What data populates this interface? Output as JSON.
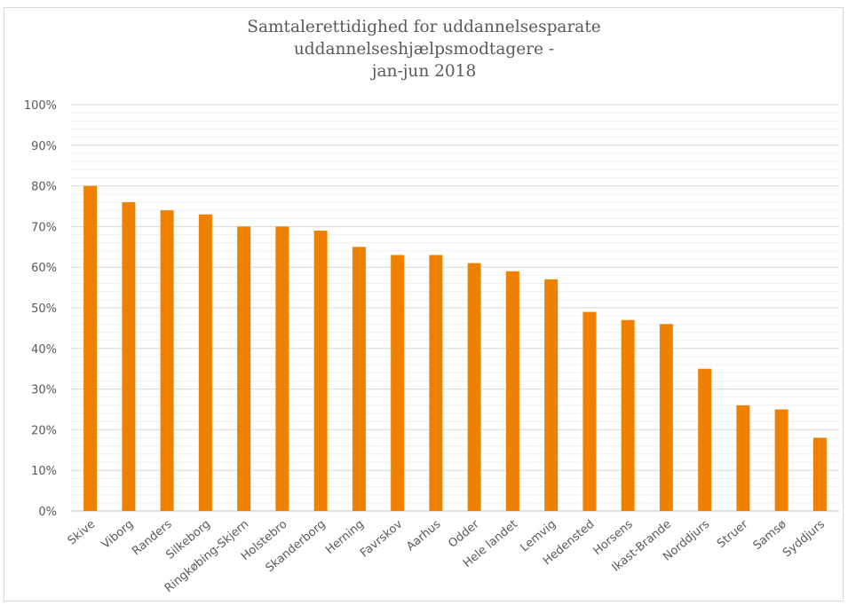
{
  "chart_data": {
    "type": "bar",
    "title_lines": [
      "Samtalerettidighed for uddannelsesparate",
      "uddannelseshjælpsmodtagere -",
      "jan-jun 2018"
    ],
    "categories": [
      "Skive",
      "Viborg",
      "Randers",
      "Silkeborg",
      "Ringkøbing-Skjern",
      "Holstebro",
      "Skanderborg",
      "Herning",
      "Favrskov",
      "Aarhus",
      "Odder",
      "Hele landet",
      "Lemvig",
      "Hedensted",
      "Horsens",
      "Ikast-Brande",
      "Norddjurs",
      "Struer",
      "Samsø",
      "Syddjurs"
    ],
    "values": [
      80,
      76,
      74,
      73,
      70,
      70,
      69,
      65,
      63,
      63,
      61,
      59,
      57,
      49,
      47,
      46,
      35,
      26,
      25,
      18
    ],
    "ylim": [
      0,
      100
    ],
    "yticks": [
      "0%",
      "10%",
      "20%",
      "30%",
      "40%",
      "50%",
      "60%",
      "70%",
      "80%",
      "90%",
      "100%"
    ],
    "grid": true,
    "bar_color": "#f08100",
    "xlabel": "",
    "ylabel": ""
  }
}
